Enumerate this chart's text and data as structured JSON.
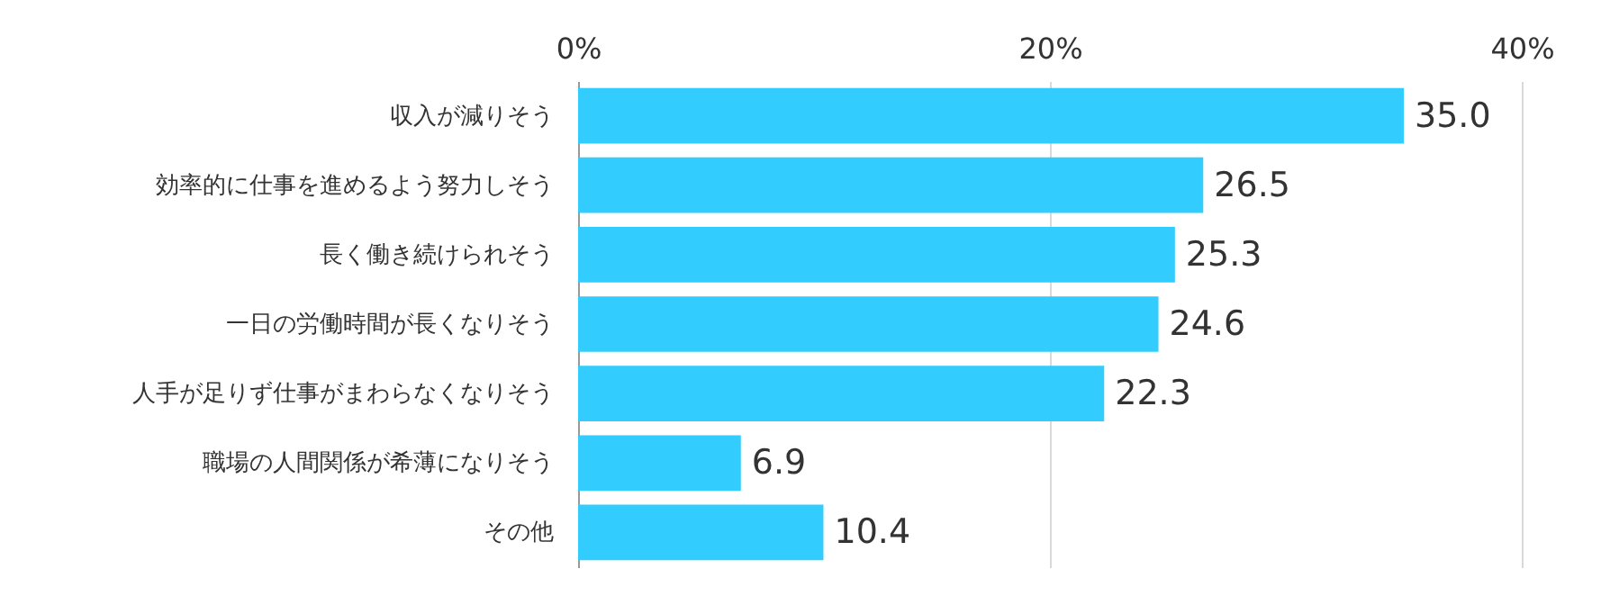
{
  "chart_data": {
    "type": "bar",
    "orientation": "horizontal",
    "categories": [
      "収入が減りそう",
      "効率的に仕事を進めるよう努力しそう",
      "長く働き続けられそう",
      "一日の労働時間が長くなりそう",
      "人手が足りず仕事がまわらなくなりそう",
      "職場の人間関係が希薄になりそう",
      "その他"
    ],
    "values": [
      35.0,
      26.5,
      25.3,
      24.6,
      22.3,
      6.9,
      10.4
    ],
    "value_labels": [
      "35.0",
      "26.5",
      "25.3",
      "24.6",
      "22.3",
      "6.9",
      "10.4"
    ],
    "color": "#33ccff",
    "xlim": [
      0,
      40
    ],
    "xticks": [
      {
        "value": 0,
        "label": "0%"
      },
      {
        "value": 20,
        "label": "20%"
      },
      {
        "value": 40,
        "label": "40%"
      }
    ],
    "grid": "x"
  }
}
